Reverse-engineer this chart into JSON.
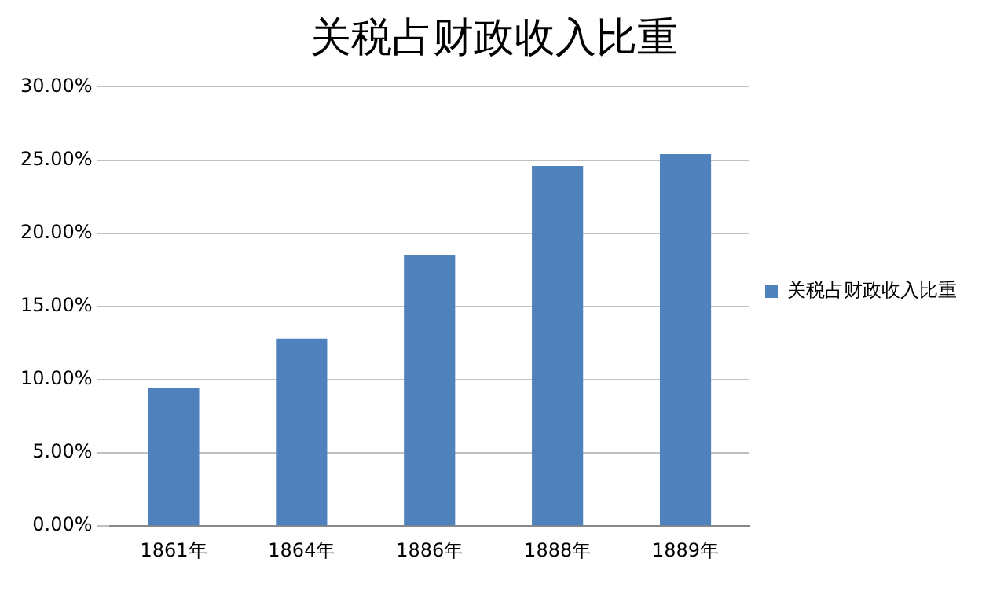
{
  "chart_data": {
    "type": "bar",
    "title": "关税占财政收入比重",
    "categories": [
      "1861年",
      "1864年",
      "1886年",
      "1888年",
      "1889年"
    ],
    "series": [
      {
        "name": "关税占财政收入比重",
        "color": "#4f81bd",
        "values": [
          9.4,
          12.8,
          18.5,
          24.6,
          25.4
        ]
      }
    ],
    "ylim": [
      0,
      30
    ],
    "yticks": [
      {
        "value": 0,
        "label": "0.00%"
      },
      {
        "value": 5,
        "label": "5.00%"
      },
      {
        "value": 10,
        "label": "10.00%"
      },
      {
        "value": 15,
        "label": "15.00%"
      },
      {
        "value": 20,
        "label": "20.00%"
      },
      {
        "value": 25,
        "label": "25.00%"
      },
      {
        "value": 30,
        "label": "30.00%"
      }
    ],
    "grid": "y",
    "legend": "right"
  }
}
